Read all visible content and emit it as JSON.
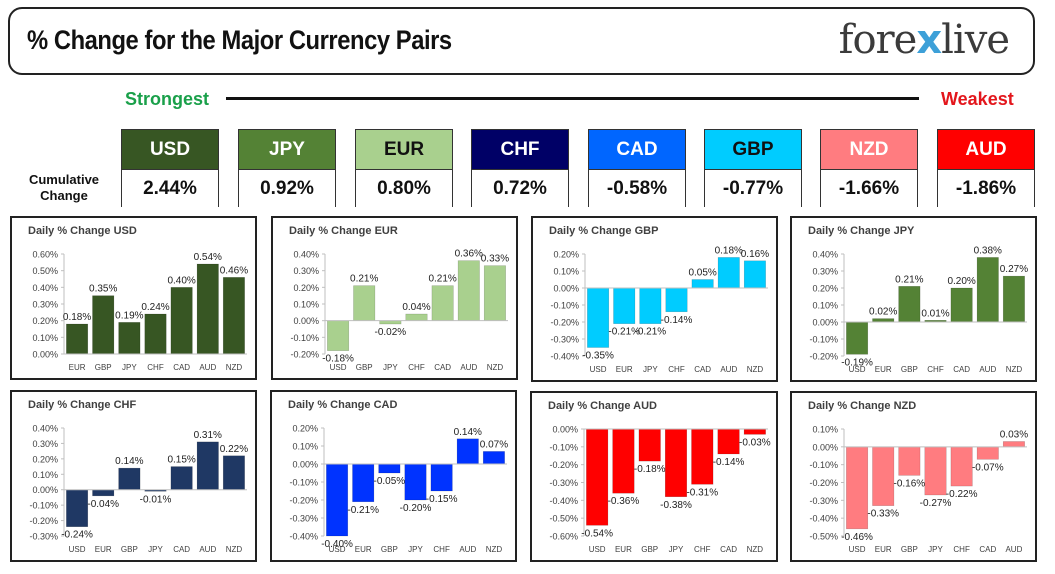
{
  "header": {
    "title": "% Change for the Major Currency Pairs",
    "logo_left": "fore",
    "logo_x": "x",
    "logo_right": "live"
  },
  "scale": {
    "strongest": "Strongest",
    "weakest": "Weakest"
  },
  "cumulative": {
    "label_line1": "Cumulative",
    "label_line2": "Change",
    "currencies": [
      {
        "name": "USD",
        "value": "2.44%",
        "color": "#375623",
        "text_color": "#ffffff"
      },
      {
        "name": "JPY",
        "value": "0.92%",
        "color": "#548235",
        "text_color": "#ffffff"
      },
      {
        "name": "EUR",
        "value": "0.80%",
        "color": "#a9d08e",
        "text_color": "#111111"
      },
      {
        "name": "CHF",
        "value": "0.72%",
        "color": "#000066",
        "text_color": "#ffffff"
      },
      {
        "name": "CAD",
        "value": "-0.58%",
        "color": "#0066ff",
        "text_color": "#ffffff"
      },
      {
        "name": "GBP",
        "value": "-0.77%",
        "color": "#00ccff",
        "text_color": "#111111"
      },
      {
        "name": "NZD",
        "value": "-1.66%",
        "color": "#ff7c80",
        "text_color": "#ffffff"
      },
      {
        "name": "AUD",
        "value": "-1.86%",
        "color": "#ff0000",
        "text_color": "#ffffff"
      }
    ]
  },
  "chart_data": [
    {
      "type": "bar",
      "title": "Daily % Change USD",
      "color": "#375623",
      "categories": [
        "EUR",
        "GBP",
        "JPY",
        "CHF",
        "CAD",
        "AUD",
        "NZD"
      ],
      "values": [
        0.18,
        0.35,
        0.19,
        0.24,
        0.4,
        0.54,
        0.46
      ],
      "labels": [
        "0.18%",
        "0.35%",
        "0.19%",
        "0.24%",
        "0.40%",
        "0.54%",
        "0.46%"
      ],
      "ylim": [
        0,
        0.6
      ],
      "yticks": [
        0,
        0.1,
        0.2,
        0.3,
        0.4,
        0.5,
        0.6
      ],
      "ytick_labels": [
        "0.00%",
        "0.10%",
        "0.20%",
        "0.30%",
        "0.40%",
        "0.50%",
        "0.60%"
      ]
    },
    {
      "type": "bar",
      "title": "Daily % Change EUR",
      "color": "#a9d08e",
      "categories": [
        "USD",
        "GBP",
        "JPY",
        "CHF",
        "CAD",
        "AUD",
        "NZD"
      ],
      "values": [
        -0.18,
        0.21,
        -0.02,
        0.04,
        0.21,
        0.36,
        0.33
      ],
      "labels": [
        "-0.18%",
        "0.21%",
        "-0.02%",
        "0.04%",
        "0.21%",
        "0.36%",
        "0.33%"
      ],
      "ylim": [
        -0.2,
        0.4
      ],
      "yticks": [
        -0.2,
        -0.1,
        0,
        0.1,
        0.2,
        0.3,
        0.4
      ],
      "ytick_labels": [
        "-0.20%",
        "-0.10%",
        "0.00%",
        "0.10%",
        "0.20%",
        "0.30%",
        "0.40%"
      ]
    },
    {
      "type": "bar",
      "title": "Daily % Change GBP",
      "color": "#00ccff",
      "categories": [
        "USD",
        "EUR",
        "JPY",
        "CHF",
        "CAD",
        "AUD",
        "NZD"
      ],
      "values": [
        -0.35,
        -0.21,
        -0.21,
        -0.14,
        0.05,
        0.18,
        0.16
      ],
      "labels": [
        "-0.35%",
        "-0.21%",
        "-0.21%",
        "-0.14%",
        "0.05%",
        "0.18%",
        "0.16%"
      ],
      "ylim": [
        -0.4,
        0.2
      ],
      "yticks": [
        -0.4,
        -0.3,
        -0.2,
        -0.1,
        0,
        0.1,
        0.2
      ],
      "ytick_labels": [
        "-0.40%",
        "-0.30%",
        "-0.20%",
        "-0.10%",
        "0.00%",
        "0.10%",
        "0.20%"
      ]
    },
    {
      "type": "bar",
      "title": "Daily % Change JPY",
      "color": "#548235",
      "categories": [
        "USD",
        "EUR",
        "GBP",
        "CHF",
        "CAD",
        "AUD",
        "NZD"
      ],
      "values": [
        -0.19,
        0.02,
        0.21,
        0.01,
        0.2,
        0.38,
        0.27
      ],
      "labels": [
        "-0.19%",
        "0.02%",
        "0.21%",
        "0.01%",
        "0.20%",
        "0.38%",
        "0.27%"
      ],
      "ylim": [
        -0.2,
        0.4
      ],
      "yticks": [
        -0.2,
        -0.1,
        0,
        0.1,
        0.2,
        0.3,
        0.4
      ],
      "ytick_labels": [
        "-0.20%",
        "-0.10%",
        "0.00%",
        "0.10%",
        "0.20%",
        "0.30%",
        "0.40%"
      ]
    },
    {
      "type": "bar",
      "title": "Daily % Change CHF",
      "color": "#1f3864",
      "categories": [
        "USD",
        "EUR",
        "GBP",
        "JPY",
        "CAD",
        "AUD",
        "NZD"
      ],
      "values": [
        -0.24,
        -0.04,
        0.14,
        -0.01,
        0.15,
        0.31,
        0.22
      ],
      "labels": [
        "-0.24%",
        "-0.04%",
        "0.14%",
        "-0.01%",
        "0.15%",
        "0.31%",
        "0.22%"
      ],
      "ylim": [
        -0.3,
        0.4
      ],
      "yticks": [
        -0.3,
        -0.2,
        -0.1,
        0,
        0.1,
        0.2,
        0.3,
        0.4
      ],
      "ytick_labels": [
        "-0.30%",
        "-0.20%",
        "-0.10%",
        "0.00%",
        "0.10%",
        "0.20%",
        "0.30%",
        "0.40%"
      ]
    },
    {
      "type": "bar",
      "title": "Daily % Change CAD",
      "color": "#0033ff",
      "categories": [
        "USD",
        "EUR",
        "GBP",
        "JPY",
        "CHF",
        "AUD",
        "NZD"
      ],
      "values": [
        -0.4,
        -0.21,
        -0.05,
        -0.2,
        -0.15,
        0.14,
        0.07
      ],
      "labels": [
        "-0.40%",
        "-0.21%",
        "-0.05%",
        "-0.20%",
        "-0.15%",
        "0.14%",
        "0.07%"
      ],
      "ylim": [
        -0.4,
        0.2
      ],
      "yticks": [
        -0.4,
        -0.3,
        -0.2,
        -0.1,
        0,
        0.1,
        0.2
      ],
      "ytick_labels": [
        "-0.40%",
        "-0.30%",
        "-0.20%",
        "-0.10%",
        "0.00%",
        "0.10%",
        "0.20%"
      ]
    },
    {
      "type": "bar",
      "title": "Daily % Change AUD",
      "color": "#ff0000",
      "categories": [
        "USD",
        "EUR",
        "GBP",
        "JPY",
        "CHF",
        "CAD",
        "NZD"
      ],
      "values": [
        -0.54,
        -0.36,
        -0.18,
        -0.38,
        -0.31,
        -0.14,
        -0.03
      ],
      "labels": [
        "-0.54%",
        "-0.36%",
        "-0.18%",
        "-0.38%",
        "-0.31%",
        "-0.14%",
        "-0.03%"
      ],
      "ylim": [
        -0.6,
        0
      ],
      "yticks": [
        -0.6,
        -0.5,
        -0.4,
        -0.3,
        -0.2,
        -0.1,
        0
      ],
      "ytick_labels": [
        "-0.60%",
        "-0.50%",
        "-0.40%",
        "-0.30%",
        "-0.20%",
        "-0.10%",
        "0.00%"
      ]
    },
    {
      "type": "bar",
      "title": "Daily % Change NZD",
      "color": "#ff7c80",
      "categories": [
        "USD",
        "EUR",
        "GBP",
        "JPY",
        "CHF",
        "CAD",
        "AUD"
      ],
      "values": [
        -0.46,
        -0.33,
        -0.16,
        -0.27,
        -0.22,
        -0.07,
        0.03
      ],
      "labels": [
        "-0.46%",
        "-0.33%",
        "-0.16%",
        "-0.27%",
        "-0.22%",
        "-0.07%",
        "0.03%"
      ],
      "ylim": [
        -0.5,
        0.1
      ],
      "yticks": [
        -0.5,
        -0.4,
        -0.3,
        -0.2,
        -0.1,
        0,
        0.1
      ],
      "ytick_labels": [
        "-0.50%",
        "-0.40%",
        "-0.30%",
        "-0.20%",
        "-0.10%",
        "0.00%",
        "0.10%"
      ]
    }
  ]
}
